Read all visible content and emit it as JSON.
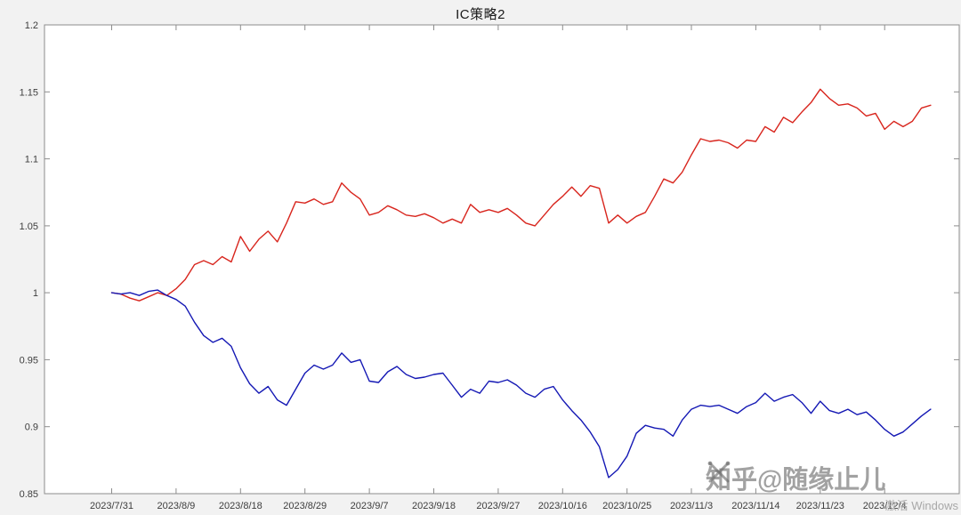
{
  "chart_data": {
    "type": "line",
    "title": "IC策略2",
    "xlabel": "",
    "ylabel": "",
    "grid": false,
    "legend": "none",
    "figure_bg": "#f2f2f2",
    "plot_bg": "#ffffff",
    "axis_color": "#8c8c8c",
    "ylim": [
      0.85,
      1.2
    ],
    "x_index_range": [
      -7.3,
      92.1
    ],
    "y_ticks": [
      0.85,
      0.9,
      0.95,
      1.0,
      1.05,
      1.1,
      1.15,
      1.2
    ],
    "y_tick_labels": [
      "0.85",
      "0.9",
      "0.95",
      "1",
      "1.05",
      "1.1",
      "1.15",
      "1.2"
    ],
    "x_tick_indices": [
      0,
      7,
      14,
      21,
      28,
      35,
      42,
      49,
      56,
      63,
      70,
      77,
      84
    ],
    "x_tick_labels": [
      "2023/7/31",
      "2023/8/9",
      "2023/8/18",
      "2023/8/29",
      "2023/9/7",
      "2023/9/18",
      "2023/9/27",
      "2023/10/16",
      "2023/10/25",
      "2023/11/3",
      "2023/11/14",
      "2023/11/23",
      "2023/12/4"
    ],
    "series": [
      {
        "name": "series-red",
        "color": "#d8251d",
        "values": [
          1.0,
          0.999,
          0.996,
          0.994,
          0.997,
          1.0,
          0.998,
          1.003,
          1.01,
          1.021,
          1.024,
          1.021,
          1.027,
          1.023,
          1.042,
          1.031,
          1.04,
          1.046,
          1.038,
          1.052,
          1.068,
          1.067,
          1.07,
          1.066,
          1.068,
          1.082,
          1.075,
          1.07,
          1.058,
          1.06,
          1.065,
          1.062,
          1.058,
          1.057,
          1.059,
          1.056,
          1.052,
          1.055,
          1.052,
          1.066,
          1.06,
          1.062,
          1.06,
          1.063,
          1.058,
          1.052,
          1.05,
          1.058,
          1.066,
          1.072,
          1.079,
          1.072,
          1.08,
          1.078,
          1.052,
          1.058,
          1.052,
          1.057,
          1.06,
          1.072,
          1.085,
          1.082,
          1.09,
          1.103,
          1.115,
          1.113,
          1.114,
          1.112,
          1.108,
          1.114,
          1.113,
          1.124,
          1.12,
          1.131,
          1.127,
          1.135,
          1.142,
          1.152,
          1.145,
          1.14,
          1.141,
          1.138,
          1.132,
          1.134,
          1.122,
          1.128,
          1.124,
          1.128,
          1.138,
          1.14
        ]
      },
      {
        "name": "series-blue",
        "color": "#1418b4",
        "values": [
          1.0,
          0.999,
          1.0,
          0.998,
          1.001,
          1.002,
          0.998,
          0.995,
          0.99,
          0.978,
          0.968,
          0.963,
          0.966,
          0.96,
          0.944,
          0.932,
          0.925,
          0.93,
          0.92,
          0.916,
          0.928,
          0.94,
          0.946,
          0.943,
          0.946,
          0.955,
          0.948,
          0.95,
          0.934,
          0.933,
          0.941,
          0.945,
          0.939,
          0.936,
          0.937,
          0.939,
          0.94,
          0.931,
          0.922,
          0.928,
          0.925,
          0.934,
          0.933,
          0.935,
          0.931,
          0.925,
          0.922,
          0.928,
          0.93,
          0.92,
          0.912,
          0.905,
          0.896,
          0.885,
          0.862,
          0.868,
          0.878,
          0.895,
          0.901,
          0.899,
          0.898,
          0.893,
          0.905,
          0.913,
          0.916,
          0.915,
          0.916,
          0.913,
          0.91,
          0.915,
          0.918,
          0.925,
          0.919,
          0.922,
          0.924,
          0.918,
          0.91,
          0.919,
          0.912,
          0.91,
          0.913,
          0.909,
          0.911,
          0.905,
          0.898,
          0.893,
          0.896,
          0.902,
          0.908,
          0.913
        ]
      }
    ]
  },
  "watermark": {
    "zhihu": "知乎@随缘止儿",
    "windows_activate": "激活 Windows"
  }
}
